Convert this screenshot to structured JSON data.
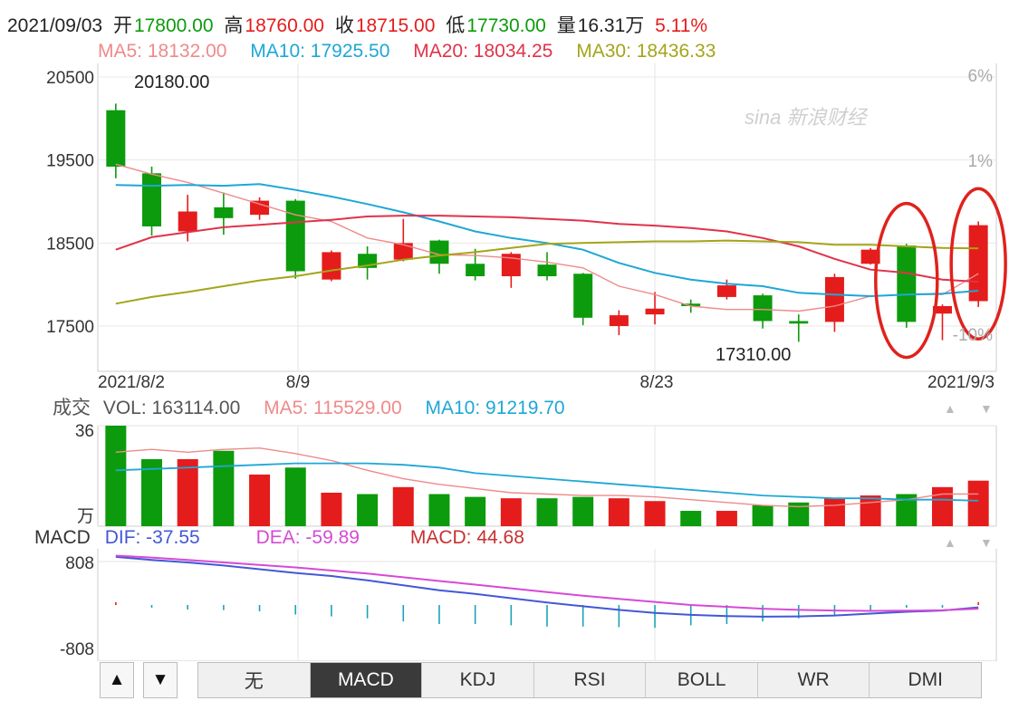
{
  "header": {
    "date": "2021/09/03",
    "open_label": "开",
    "open": "17800.00",
    "high_label": "高",
    "high": "18760.00",
    "close_label": "收",
    "close": "18715.00",
    "low_label": "低",
    "low": "17730.00",
    "volume_label": "量",
    "volume": "16.31万",
    "change": "5.11%"
  },
  "ma_legend": {
    "ma5": "MA5: 18132.00",
    "ma10": "MA10: 17925.50",
    "ma20": "MA20: 18034.25",
    "ma30": "MA30: 18436.33"
  },
  "volume_legend": {
    "title": "成交",
    "vol": "VOL: 163114.00",
    "ma5": "MA5: 115529.00",
    "ma10": "MA10: 91219.70"
  },
  "macd_legend": {
    "title": "MACD",
    "dif": "DIF: -37.55",
    "dea": "DEA: -59.89",
    "macd": "MACD: 44.68"
  },
  "watermark": "sina 新浪财经",
  "tabs": [
    "无",
    "MACD",
    "KDJ",
    "RSI",
    "BOLL",
    "WR",
    "DMI"
  ],
  "active_tab": "MACD",
  "nav": {
    "up": "▲",
    "down": "▼"
  },
  "colors": {
    "up": "#e51c1c",
    "down": "#0c9b0c",
    "ma5": "#ef8a8a",
    "ma10": "#1ea7d6",
    "ma20": "#e0334a",
    "ma30": "#a4a51a",
    "dif": "#4358d6",
    "dea": "#d64ad6",
    "highlight": "#e0221c"
  },
  "chart_data": [
    {
      "type": "candlestick",
      "ylim": [
        17300,
        20500
      ],
      "y_ticks": [
        "20500",
        "19500",
        "18500",
        "17500"
      ],
      "pct_ticks": [
        "6%",
        "1%",
        "-10%"
      ],
      "x_labels": [
        "2021/8/2",
        "8/9",
        "8/23",
        "2021/9/3"
      ],
      "annotations": [
        "20180.00",
        "17310.00"
      ],
      "candles": [
        {
          "open": 19420,
          "close": 20100,
          "high": 20180,
          "low": 19280,
          "dir": "down"
        },
        {
          "open": 18700,
          "close": 19340,
          "high": 19420,
          "low": 18590,
          "dir": "down"
        },
        {
          "open": 18640,
          "close": 18880,
          "high": 19080,
          "low": 18520,
          "dir": "up"
        },
        {
          "open": 18800,
          "close": 18930,
          "high": 19110,
          "low": 18600,
          "dir": "down"
        },
        {
          "open": 18840,
          "close": 19010,
          "high": 19050,
          "low": 18780,
          "dir": "up"
        },
        {
          "open": 18160,
          "close": 19010,
          "high": 19030,
          "low": 18070,
          "dir": "down"
        },
        {
          "open": 18060,
          "close": 18390,
          "high": 18410,
          "low": 18040,
          "dir": "up"
        },
        {
          "open": 18200,
          "close": 18370,
          "high": 18460,
          "low": 18060,
          "dir": "down"
        },
        {
          "open": 18300,
          "close": 18500,
          "high": 18790,
          "low": 18280,
          "dir": "up"
        },
        {
          "open": 18250,
          "close": 18530,
          "high": 18540,
          "low": 18130,
          "dir": "down"
        },
        {
          "open": 18100,
          "close": 18250,
          "high": 18430,
          "low": 18050,
          "dir": "down"
        },
        {
          "open": 18100,
          "close": 18370,
          "high": 18390,
          "low": 17960,
          "dir": "up"
        },
        {
          "open": 18100,
          "close": 18240,
          "high": 18390,
          "low": 18050,
          "dir": "down"
        },
        {
          "open": 17600,
          "close": 18130,
          "high": 18140,
          "low": 17510,
          "dir": "down"
        },
        {
          "open": 17500,
          "close": 17630,
          "high": 17690,
          "low": 17390,
          "dir": "up"
        },
        {
          "open": 17640,
          "close": 17710,
          "high": 17910,
          "low": 17520,
          "dir": "up"
        },
        {
          "open": 17740,
          "close": 17770,
          "high": 17820,
          "low": 17660,
          "dir": "down"
        },
        {
          "open": 17850,
          "close": 17990,
          "high": 18060,
          "low": 17820,
          "dir": "up"
        },
        {
          "open": 17560,
          "close": 17870,
          "high": 17890,
          "low": 17470,
          "dir": "down"
        },
        {
          "open": 17530,
          "close": 17560,
          "high": 17640,
          "low": 17310,
          "dir": "down"
        },
        {
          "open": 17550,
          "close": 18090,
          "high": 18130,
          "low": 17430,
          "dir": "up"
        },
        {
          "open": 18250,
          "close": 18420,
          "high": 18440,
          "low": 18240,
          "dir": "up"
        },
        {
          "open": 17550,
          "close": 18470,
          "high": 18490,
          "low": 17480,
          "dir": "down"
        },
        {
          "open": 17650,
          "close": 17740,
          "high": 17760,
          "low": 17330,
          "dir": "up"
        },
        {
          "open": 17800,
          "close": 18715,
          "high": 18760,
          "low": 17730,
          "dir": "up"
        }
      ],
      "series": [
        {
          "name": "MA5",
          "values": [
            19450,
            19330,
            19230,
            19100,
            18970,
            18840,
            18760,
            18560,
            18480,
            18360,
            18350,
            18320,
            18270,
            18200,
            17980,
            17880,
            17740,
            17700,
            17700,
            17680,
            17740,
            17860,
            17880,
            17880,
            18132
          ]
        },
        {
          "name": "MA10",
          "values": [
            19200,
            19190,
            19200,
            19190,
            19210,
            19140,
            19060,
            18970,
            18870,
            18760,
            18640,
            18560,
            18500,
            18420,
            18260,
            18140,
            18060,
            18010,
            17980,
            17900,
            17880,
            17860,
            17880,
            17890,
            17925
          ]
        },
        {
          "name": "MA20",
          "values": [
            18420,
            18570,
            18630,
            18690,
            18720,
            18750,
            18780,
            18820,
            18830,
            18830,
            18820,
            18810,
            18790,
            18770,
            18730,
            18710,
            18680,
            18640,
            18560,
            18460,
            18310,
            18180,
            18140,
            18060,
            18034
          ]
        },
        {
          "name": "MA30",
          "values": [
            17770,
            17850,
            17910,
            17980,
            18050,
            18100,
            18170,
            18230,
            18300,
            18350,
            18390,
            18440,
            18490,
            18500,
            18510,
            18520,
            18520,
            18530,
            18520,
            18510,
            18480,
            18480,
            18460,
            18440,
            18436
          ]
        }
      ]
    },
    {
      "type": "bar",
      "name": "volume",
      "ylim": [
        0,
        36
      ],
      "y_ticks": [
        "36"
      ],
      "unit": "万",
      "values": [
        36,
        24,
        24,
        27,
        18.5,
        21,
        12,
        11.5,
        14,
        11.5,
        10.5,
        10,
        10,
        10.5,
        10,
        9,
        5.5,
        5.5,
        7.5,
        8.5,
        10,
        11,
        11.5,
        14,
        16.31
      ],
      "dirs": [
        "down",
        "down",
        "up",
        "down",
        "up",
        "down",
        "up",
        "down",
        "up",
        "down",
        "down",
        "up",
        "down",
        "down",
        "up",
        "up",
        "down",
        "up",
        "down",
        "down",
        "up",
        "up",
        "down",
        "up",
        "up"
      ],
      "series": [
        {
          "name": "MA5",
          "values": [
            26.5,
            27.5,
            26.5,
            27.5,
            28,
            26,
            23.5,
            20,
            17,
            15,
            13.5,
            12,
            11.5,
            11,
            11,
            10.5,
            9.5,
            8.5,
            7.5,
            7,
            7.5,
            8.5,
            9.5,
            11.5,
            11.55
          ]
        },
        {
          "name": "MA10",
          "values": [
            20,
            20.5,
            21,
            21.5,
            22,
            22.5,
            22.5,
            22.5,
            22,
            21,
            19,
            18,
            17,
            16,
            15,
            14,
            13,
            12,
            11,
            10.5,
            10,
            10,
            9.5,
            9.5,
            9.12
          ]
        }
      ]
    },
    {
      "type": "line",
      "name": "MACD",
      "ylim": [
        -808,
        808
      ],
      "y_ticks": [
        "808",
        "-808"
      ],
      "series": [
        {
          "name": "DIF",
          "values": [
            780,
            730,
            690,
            640,
            580,
            520,
            470,
            400,
            320,
            240,
            180,
            110,
            40,
            -20,
            -80,
            -130,
            -160,
            -180,
            -190,
            -185,
            -170,
            -140,
            -110,
            -90,
            -37.55
          ]
        },
        {
          "name": "DEA",
          "values": [
            800,
            770,
            730,
            690,
            650,
            610,
            560,
            510,
            450,
            390,
            330,
            270,
            210,
            150,
            100,
            50,
            0,
            -30,
            -60,
            -80,
            -90,
            -95,
            -92,
            -85,
            -59.89
          ]
        }
      ],
      "histogram": [
        20,
        -20,
        -70,
        -80,
        -100,
        -150,
        -180,
        -210,
        -260,
        -300,
        -300,
        -320,
        -340,
        -340,
        -350,
        -360,
        -320,
        -300,
        -260,
        -210,
        -160,
        -90,
        -40,
        -10,
        44.68
      ]
    }
  ]
}
